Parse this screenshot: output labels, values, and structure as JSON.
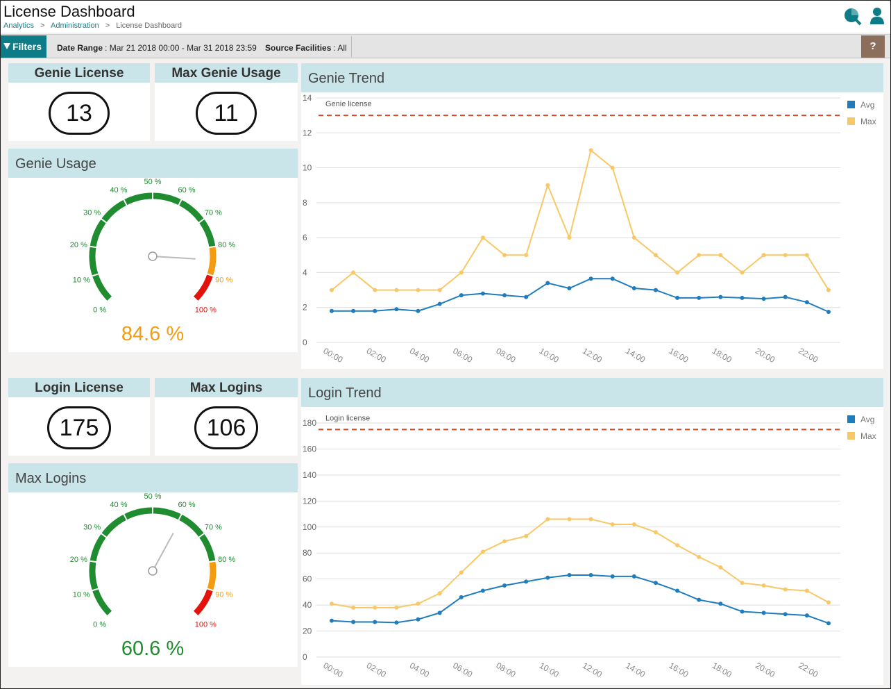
{
  "header": {
    "title": "License Dashboard",
    "breadcrumbs": [
      "Analytics",
      "Administration",
      "License Dashboard"
    ],
    "separator": ">"
  },
  "filter_bar": {
    "button": "Filters",
    "date_range_label": "Date Range",
    "date_range_value": ": Mar 21 2018 00:00 - Mar 31 2018 23:59",
    "facilities_label": "Source Facilities",
    "facilities_value": ": All",
    "help": "?"
  },
  "cards": [
    {
      "title": "Genie License",
      "value": 13
    },
    {
      "title": "Max Genie Usage",
      "value": 11
    },
    {
      "title": "Login License",
      "value": 175
    },
    {
      "title": "Max Logins",
      "value": 106
    }
  ],
  "chart_data": [
    {
      "type": "gauge",
      "title": "Genie Usage",
      "value": 84.6,
      "value_label": "84.6 %",
      "lim": [
        0,
        100
      ],
      "ticks": [
        {
          "value": 0,
          "label": "0 %"
        },
        {
          "value": 10,
          "label": "10 %"
        },
        {
          "value": 20,
          "label": "20 %"
        },
        {
          "value": 30,
          "label": "30 %"
        },
        {
          "value": 40,
          "label": "40 %"
        },
        {
          "value": 50,
          "label": "50 %"
        },
        {
          "value": 60,
          "label": "60 %"
        },
        {
          "value": 70,
          "label": "70 %"
        },
        {
          "value": 80,
          "label": "80 %"
        },
        {
          "value": 90,
          "label": "90 %"
        },
        {
          "value": 100,
          "label": "100 %"
        }
      ],
      "bands": [
        {
          "from": 0,
          "to": 80,
          "color": "#1e8c2f"
        },
        {
          "from": 80,
          "to": 90,
          "color": "#f39c12"
        },
        {
          "from": 90,
          "to": 100,
          "color": "#e3120b"
        }
      ]
    },
    {
      "type": "line",
      "title": "Genie Trend",
      "categories": [
        "00:00",
        null,
        "02:00",
        null,
        "04:00",
        null,
        "06:00",
        null,
        "08:00",
        null,
        "10:00",
        null,
        "12:00",
        null,
        "14:00",
        null,
        "16:00",
        null,
        "18:00",
        null,
        "20:00",
        null,
        "22:00",
        null
      ],
      "series": [
        {
          "name": "Avg",
          "color": "#1f7dbd",
          "values": [
            1.8,
            1.8,
            1.8,
            1.9,
            1.8,
            2.2,
            2.7,
            2.8,
            2.7,
            2.6,
            3.4,
            3.1,
            3.65,
            3.65,
            3.1,
            3.0,
            2.55,
            2.55,
            2.6,
            2.55,
            2.5,
            2.6,
            2.3,
            1.75
          ]
        },
        {
          "name": "Max",
          "color": "#f9c866",
          "values": [
            3,
            4,
            3,
            3,
            3,
            3,
            4,
            6,
            5,
            5,
            9,
            6,
            11,
            10,
            6,
            5,
            4,
            5,
            5,
            4,
            5,
            5,
            5,
            3
          ]
        }
      ],
      "ylim": [
        0,
        14
      ],
      "yticks": [
        0,
        2,
        4,
        6,
        8,
        10,
        12,
        14
      ],
      "grid": true,
      "legend": "right",
      "reference_line": {
        "label": "Genie license",
        "value": 13,
        "color": "#e8401c"
      }
    },
    {
      "type": "gauge",
      "title": "Max Logins",
      "value": 60.6,
      "value_label": "60.6 %",
      "lim": [
        0,
        100
      ],
      "ticks": [
        {
          "value": 0,
          "label": "0 %"
        },
        {
          "value": 10,
          "label": "10 %"
        },
        {
          "value": 20,
          "label": "20 %"
        },
        {
          "value": 30,
          "label": "30 %"
        },
        {
          "value": 40,
          "label": "40 %"
        },
        {
          "value": 50,
          "label": "50 %"
        },
        {
          "value": 60,
          "label": "60 %"
        },
        {
          "value": 70,
          "label": "70 %"
        },
        {
          "value": 80,
          "label": "80 %"
        },
        {
          "value": 90,
          "label": "90 %"
        },
        {
          "value": 100,
          "label": "100 %"
        }
      ],
      "bands": [
        {
          "from": 0,
          "to": 80,
          "color": "#1e8c2f"
        },
        {
          "from": 80,
          "to": 90,
          "color": "#f39c12"
        },
        {
          "from": 90,
          "to": 100,
          "color": "#e3120b"
        }
      ]
    },
    {
      "type": "line",
      "title": "Login Trend",
      "categories": [
        "00:00",
        null,
        "02:00",
        null,
        "04:00",
        null,
        "06:00",
        null,
        "08:00",
        null,
        "10:00",
        null,
        "12:00",
        null,
        "14:00",
        null,
        "16:00",
        null,
        "18:00",
        null,
        "20:00",
        null,
        "22:00",
        null
      ],
      "series": [
        {
          "name": "Avg",
          "color": "#1f7dbd",
          "values": [
            28,
            27,
            27,
            26.5,
            29,
            34,
            46,
            51,
            55,
            58,
            61,
            63,
            63,
            62,
            62,
            57,
            51,
            44,
            41,
            35,
            34,
            33,
            32,
            26
          ]
        },
        {
          "name": "Max",
          "color": "#f9c866",
          "values": [
            41,
            38,
            38,
            38,
            41,
            49,
            65,
            81,
            89,
            93,
            106,
            106,
            106,
            102,
            102,
            96,
            86,
            77,
            69,
            57,
            55,
            52,
            51,
            42
          ]
        }
      ],
      "ylim": [
        0,
        180
      ],
      "yticks": [
        0,
        20,
        40,
        60,
        80,
        100,
        120,
        140,
        160,
        180
      ],
      "grid": true,
      "legend": "right",
      "reference_line": {
        "label": "Login license",
        "value": 175,
        "color": "#e8401c"
      }
    }
  ]
}
